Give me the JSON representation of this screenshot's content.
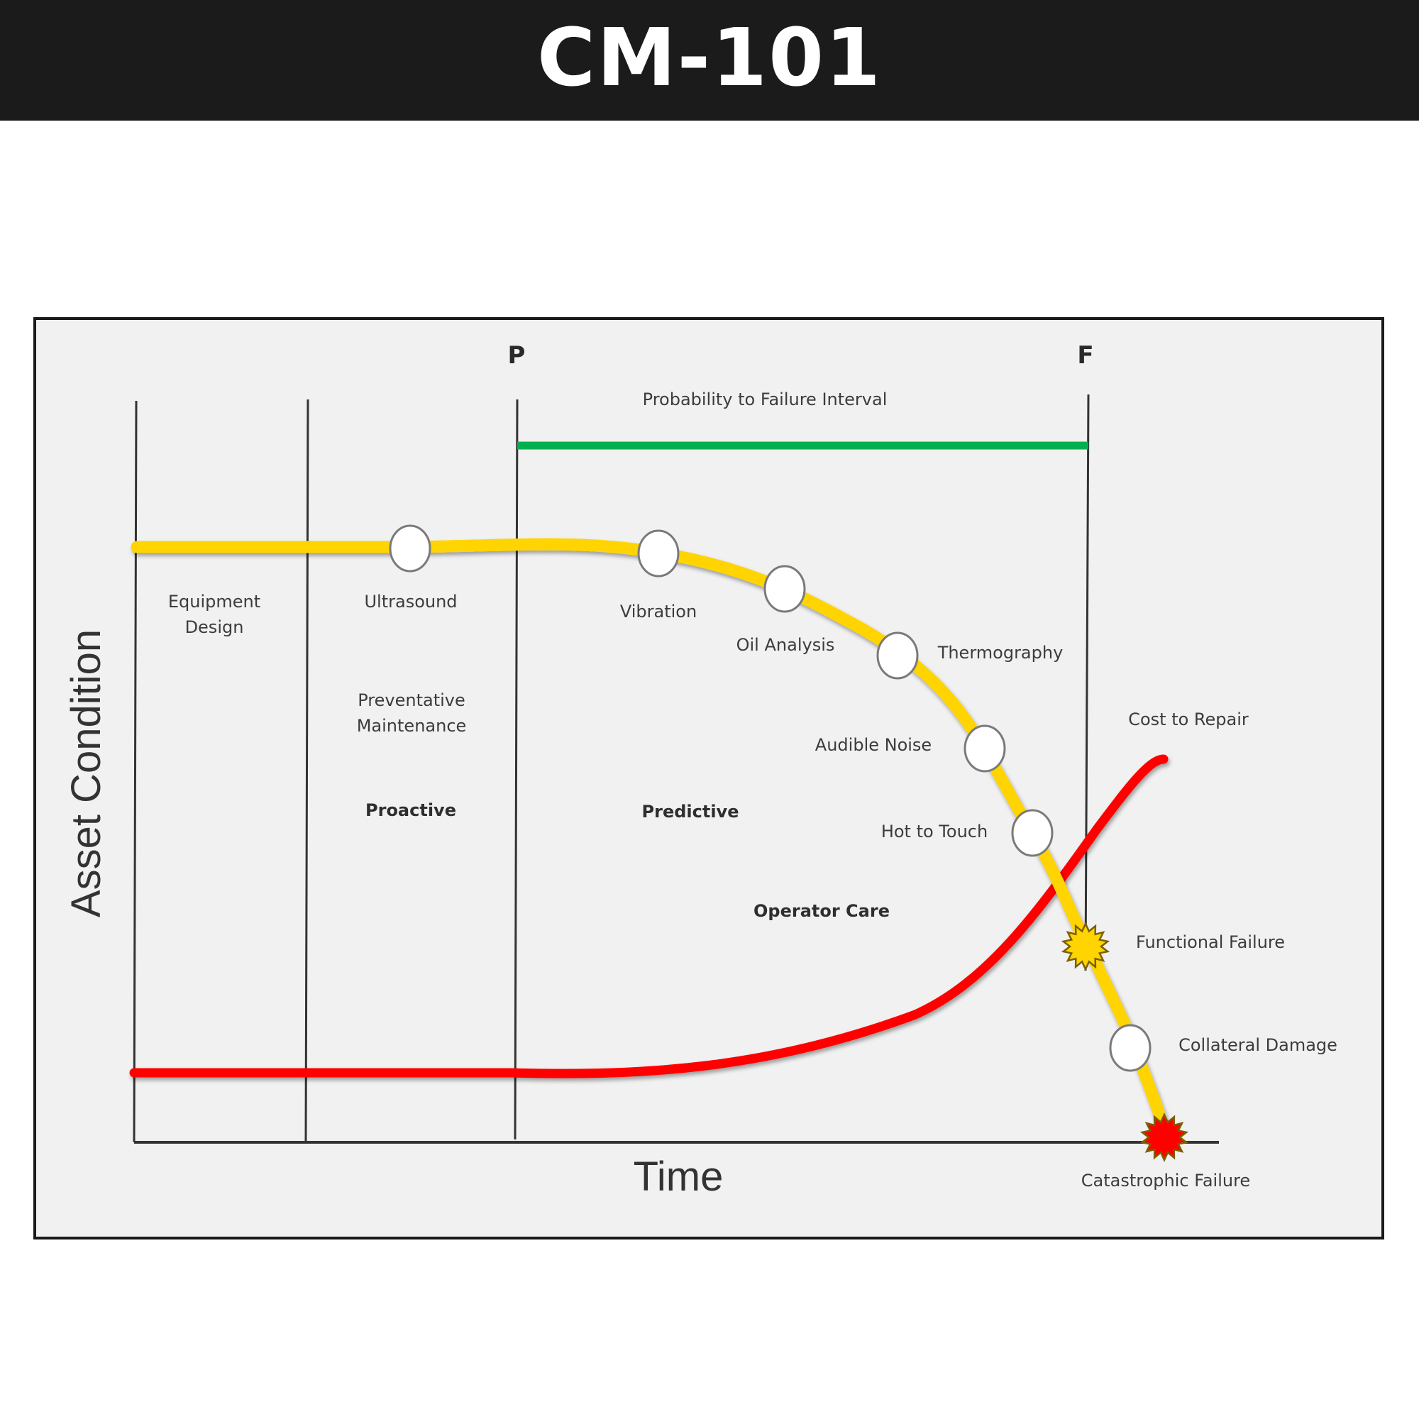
{
  "header": {
    "title": "CM-101"
  },
  "diagram": {
    "markers": {
      "p": "P",
      "f": "F"
    },
    "interval_label": "Probability to Failure Interval",
    "axis": {
      "y_label": "Asset Condition",
      "x_label": "Time"
    },
    "zones": {
      "equipment_design": [
        "Equipment",
        "Design"
      ],
      "preventative_maintenance": [
        "Preventative",
        "Maintenance"
      ],
      "proactive": "Proactive",
      "predictive": "Predictive",
      "operator_care": "Operator Care"
    },
    "curve_points": {
      "ultrasound": "Ultrasound",
      "vibration": "Vibration",
      "oil_analysis": "Oil Analysis",
      "thermography": "Thermography",
      "audible_noise": "Audible Noise",
      "hot_to_touch": "Hot to Touch",
      "functional_failure": "Functional Failure",
      "collateral_damage": "Collateral Damage",
      "catastrophic_failure": "Catastrophic Failure"
    },
    "cost_label": "Cost to Repair",
    "colors": {
      "condition_curve": "#ffd400",
      "cost_curve": "#ff0000",
      "interval_bar": "#00b050",
      "panel_background": "#f1f1f1",
      "functional_failure_star": "#ffd400",
      "catastrophic_failure_star": "#ff0000"
    }
  }
}
